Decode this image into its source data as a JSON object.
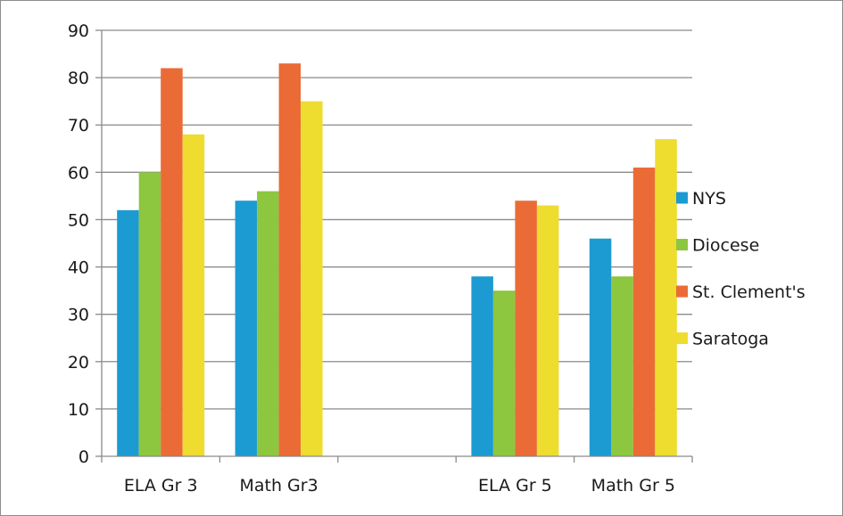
{
  "chart_data": {
    "type": "bar",
    "categories": [
      "ELA Gr 3",
      "Math Gr3",
      "",
      "ELA Gr 5",
      "Math Gr 5"
    ],
    "series": [
      {
        "name": "NYS",
        "values": [
          52,
          54,
          null,
          38,
          46
        ],
        "color": "#1b9bd1"
      },
      {
        "name": "Diocese",
        "values": [
          60,
          56,
          null,
          35,
          38
        ],
        "color": "#8dc63f"
      },
      {
        "name": "St. Clement's",
        "values": [
          82,
          83,
          null,
          54,
          61
        ],
        "color": "#ea6b36"
      },
      {
        "name": "Saratoga",
        "values": [
          68,
          75,
          null,
          53,
          67
        ],
        "color": "#eedc2f"
      }
    ],
    "ylim": [
      0,
      90
    ],
    "yticks": [
      0,
      10,
      20,
      30,
      40,
      50,
      60,
      70,
      80,
      90
    ],
    "grid": true,
    "legend_position": "right",
    "title": "",
    "xlabel": "",
    "ylabel": ""
  }
}
